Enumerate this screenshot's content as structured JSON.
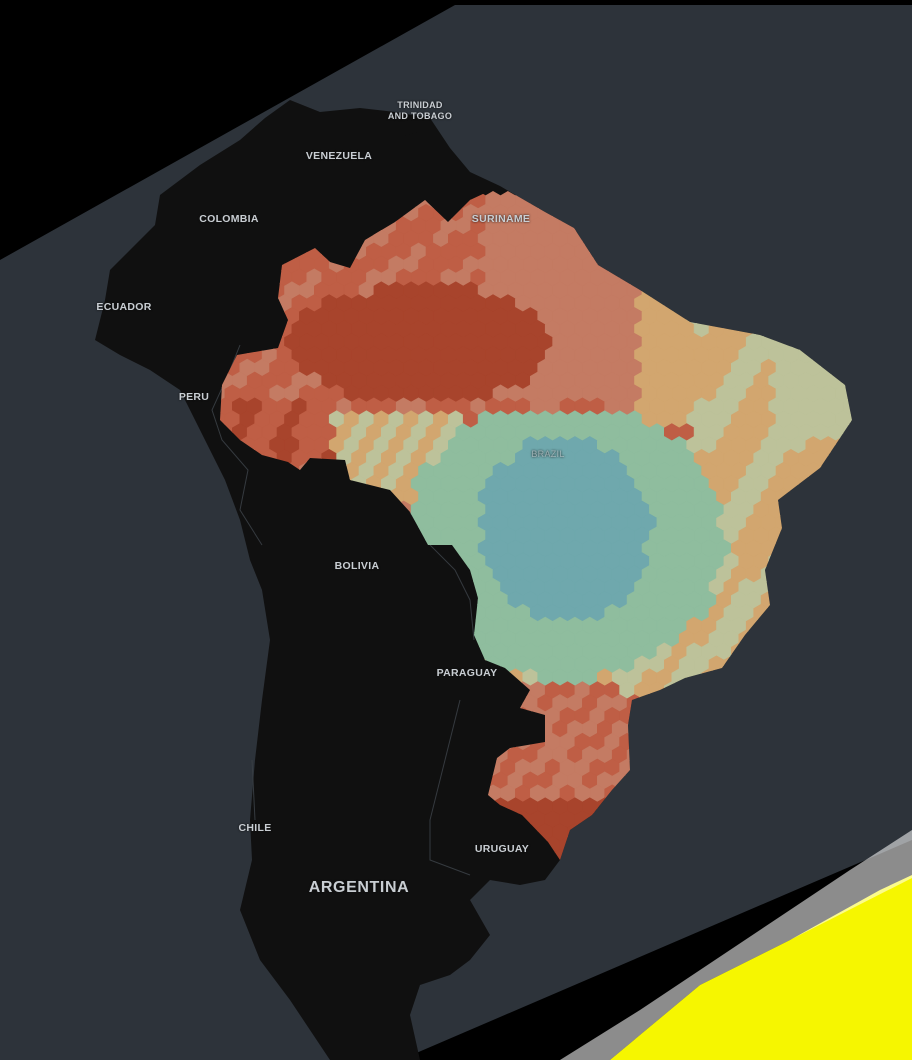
{
  "map": {
    "labels": {
      "trinidad_line1": "TRINIDAD",
      "trinidad_line2": "AND TOBAGO",
      "venezuela": "VENEZUELA",
      "colombia": "COLOMBIA",
      "suriname": "SURINAME",
      "ecuador": "ECUADOR",
      "peru": "PERU",
      "brazil": "BRAZIL",
      "bolivia": "BOLIVIA",
      "paraguay": "PARAGUAY",
      "chile": "CHILE",
      "uruguay": "URUGUAY",
      "argentina": "ARGENTINA"
    },
    "colors": {
      "ocean": "#2d333a",
      "land": "#101010",
      "corner_highlight": "#f6f600",
      "hex_scale": [
        "#6fa8ad",
        "#8fbd9e",
        "#bdc29a",
        "#d2a66f",
        "#c47b63",
        "#bf5e45",
        "#a8442c"
      ]
    },
    "layer": "hexagon-aggregation"
  }
}
